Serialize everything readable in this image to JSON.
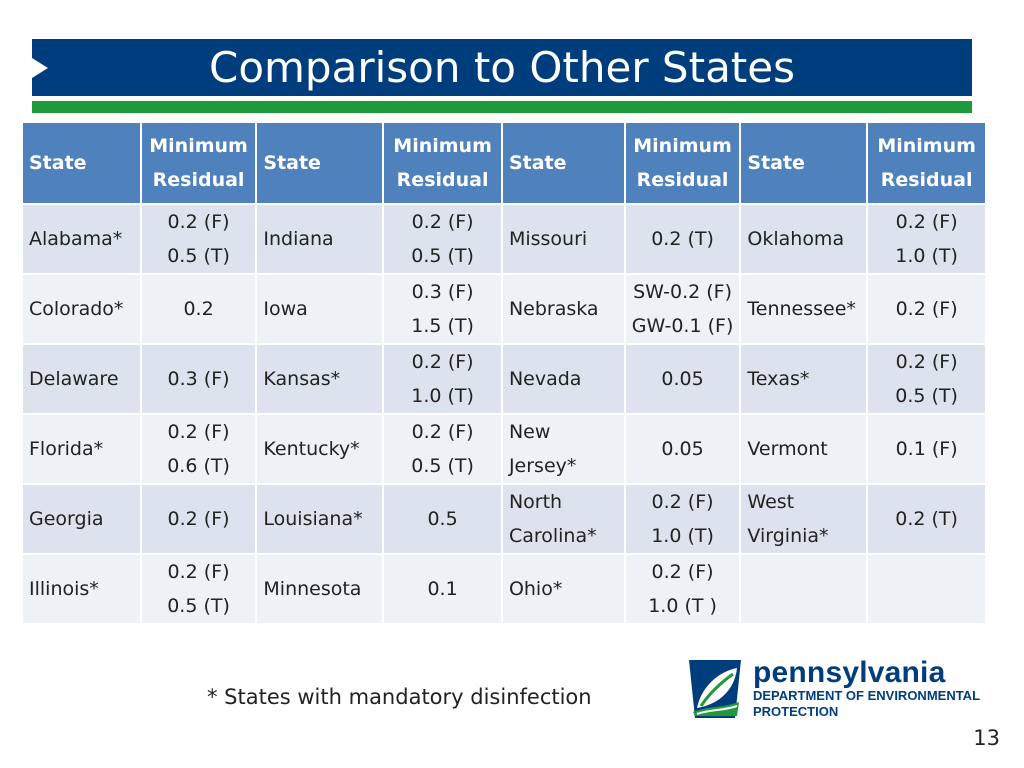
{
  "slide": {
    "title": "Comparison to Other States",
    "footnote": "* States with mandatory disinfection",
    "page_number": "13"
  },
  "table": {
    "headers": [
      {
        "state": "State",
        "residual": [
          "Minimum",
          "Residual"
        ]
      },
      {
        "state": "State",
        "residual": [
          "Minimum",
          "Residual"
        ]
      },
      {
        "state": "State",
        "residual": [
          "Minimum",
          "Residual"
        ]
      },
      {
        "state": "State",
        "residual": [
          "Minimum",
          "Residual"
        ]
      }
    ],
    "rows": [
      [
        {
          "state": [
            "Alabama*"
          ],
          "residual": [
            "0.2 (F)",
            "0.5 (T)"
          ]
        },
        {
          "state": [
            "Indiana"
          ],
          "residual": [
            "0.2 (F)",
            "0.5 (T)"
          ]
        },
        {
          "state": [
            "Missouri"
          ],
          "residual": [
            "0.2 (T)"
          ]
        },
        {
          "state": [
            "Oklahoma"
          ],
          "residual": [
            "0.2 (F)",
            "1.0 (T)"
          ]
        }
      ],
      [
        {
          "state": [
            "Colorado*"
          ],
          "residual": [
            "0.2"
          ]
        },
        {
          "state": [
            "Iowa"
          ],
          "residual": [
            "0.3 (F)",
            "1.5 (T)"
          ]
        },
        {
          "state": [
            "Nebraska"
          ],
          "residual": [
            "SW-0.2 (F)",
            "GW-0.1 (F)"
          ]
        },
        {
          "state": [
            "Tennessee*"
          ],
          "residual": [
            "0.2 (F)"
          ]
        }
      ],
      [
        {
          "state": [
            "Delaware"
          ],
          "residual": [
            "0.3 (F)"
          ]
        },
        {
          "state": [
            "Kansas*"
          ],
          "residual": [
            "0.2 (F)",
            "1.0 (T)"
          ]
        },
        {
          "state": [
            "Nevada"
          ],
          "residual": [
            "0.05"
          ]
        },
        {
          "state": [
            "Texas*"
          ],
          "residual": [
            "0.2 (F)",
            "0.5 (T)"
          ]
        }
      ],
      [
        {
          "state": [
            "Florida*"
          ],
          "residual": [
            "0.2 (F)",
            "0.6 (T)"
          ]
        },
        {
          "state": [
            "Kentucky*"
          ],
          "residual": [
            "0.2 (F)",
            "0.5 (T)"
          ]
        },
        {
          "state": [
            "New",
            "Jersey*"
          ],
          "residual": [
            "0.05"
          ]
        },
        {
          "state": [
            "Vermont"
          ],
          "residual": [
            "0.1 (F)"
          ]
        }
      ],
      [
        {
          "state": [
            "Georgia"
          ],
          "residual": [
            "0.2 (F)"
          ]
        },
        {
          "state": [
            "Louisiana*"
          ],
          "residual": [
            "0.5"
          ]
        },
        {
          "state": [
            "North",
            "Carolina*"
          ],
          "residual": [
            "0.2 (F)",
            "1.0 (T)"
          ]
        },
        {
          "state": [
            "West",
            "Virginia*"
          ],
          "residual": [
            "0.2 (T)"
          ]
        }
      ],
      [
        {
          "state": [
            "Illinois*"
          ],
          "residual": [
            "0.2 (F)",
            "0.5 (T)"
          ]
        },
        {
          "state": [
            "Minnesota"
          ],
          "residual": [
            "0.1"
          ]
        },
        {
          "state": [
            "Ohio*"
          ],
          "residual": [
            "0.2 (F)",
            "1.0 (T )"
          ]
        },
        {
          "state": [
            ""
          ],
          "residual": [
            ""
          ]
        }
      ]
    ]
  },
  "logo": {
    "wordmark": "pennsylvania",
    "line1": "DEPARTMENT OF ENVIRONMENTAL",
    "line2": "PROTECTION"
  },
  "colors": {
    "title_bar": "#003d7d",
    "accent_green": "#1e9a3a",
    "header_fill": "#4f81bd",
    "row_fill_a": "#dde3ee",
    "row_fill_b": "#eef1f6"
  }
}
